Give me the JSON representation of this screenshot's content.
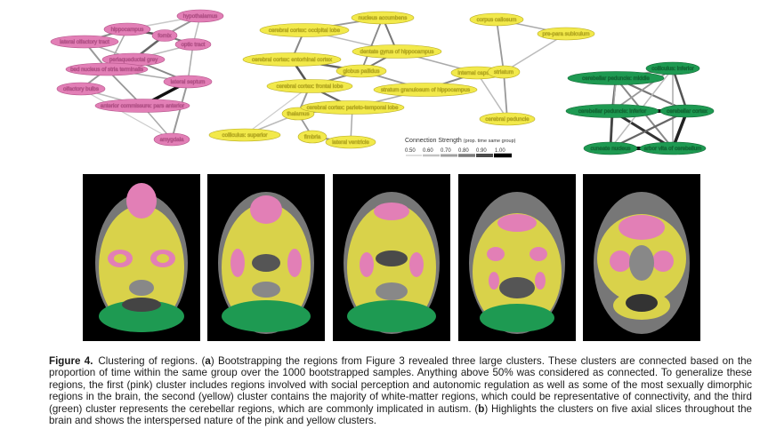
{
  "colors": {
    "pink": "#e27fb6",
    "yellow": "#f2e94b",
    "green": "#1e9a52",
    "edge_min": "#dddddd",
    "edge_max": "#000000"
  },
  "legend": {
    "title": "Connection Strength",
    "subtitle": "(prop. time same group)",
    "ticks": [
      "0.50",
      "0.60",
      "0.70",
      "0.80",
      "0.90",
      "1.00"
    ]
  },
  "pink_nodes": [
    {
      "id": "p1",
      "label": "hippocampus"
    },
    {
      "id": "p2",
      "label": "hypothalamus"
    },
    {
      "id": "p3",
      "label": "fornix"
    },
    {
      "id": "p4",
      "label": "lateral olfactory tract"
    },
    {
      "id": "p5",
      "label": "optic tract"
    },
    {
      "id": "p6",
      "label": "periaqueductal grey"
    },
    {
      "id": "p7",
      "label": "bed nucleus of stria terminalis"
    },
    {
      "id": "p8",
      "label": "olfactory bulbs"
    },
    {
      "id": "p9",
      "label": "lateral septum"
    },
    {
      "id": "p10",
      "label": "anterior commissure: pars anterior"
    },
    {
      "id": "p11",
      "label": "amygdala"
    }
  ],
  "yellow_nodes": [
    {
      "id": "y1",
      "label": "nucleus accumbens"
    },
    {
      "id": "y2",
      "label": "cerebral cortex: occipital lobe"
    },
    {
      "id": "y3",
      "label": "corpus callosum"
    },
    {
      "id": "y4",
      "label": "pre-para subiculum"
    },
    {
      "id": "y5",
      "label": "dentate gyrus of hippocampus"
    },
    {
      "id": "y6",
      "label": "cerebral cortex: entorhinal cortex"
    },
    {
      "id": "y7",
      "label": "globus pallidus"
    },
    {
      "id": "y8",
      "label": "internal capsule"
    },
    {
      "id": "y9",
      "label": "striatum"
    },
    {
      "id": "y10",
      "label": "cerebral cortex: frontal lobe"
    },
    {
      "id": "y11",
      "label": "stratum granulosum of hippocampus"
    },
    {
      "id": "y12",
      "label": "thalamus"
    },
    {
      "id": "y13",
      "label": "cerebral cortex: parieto-temporal lobe"
    },
    {
      "id": "y14",
      "label": "cerebral peduncle"
    },
    {
      "id": "y15",
      "label": "colliculus: superior"
    },
    {
      "id": "y16",
      "label": "fimbria"
    },
    {
      "id": "y17",
      "label": "lateral ventricle"
    }
  ],
  "green_nodes": [
    {
      "id": "g1",
      "label": "colliculus: inferior"
    },
    {
      "id": "g2",
      "label": "cerebellar peduncle: middle"
    },
    {
      "id": "g3",
      "label": "cerebellar peduncle: inferior"
    },
    {
      "id": "g4",
      "label": "cerebellar cortex"
    },
    {
      "id": "g5",
      "label": "cuneate nucleus"
    },
    {
      "id": "g6",
      "label": "arbor vita of cerebellum"
    }
  ],
  "panels": [
    {
      "label": ""
    },
    {
      "label": ""
    },
    {
      "label": ""
    },
    {
      "label": ""
    },
    {
      "label": ""
    }
  ],
  "caption": {
    "figure_label": "Figure 4.",
    "text_1": "Clustering of regions. (",
    "bold_a": "a",
    "text_2": ") Bootstrapping the regions from Figure 3 revealed three large clusters. These clusters are connected based on the proportion of time within the same group over the 1000 bootstrapped samples. Anything above 50% was considered as connected. To generalize these regions, the first (pink) cluster includes regions involved with social perception and autonomic regulation as well as some of the most sexually dimorphic regions in the brain, the second (yellow) cluster contains the majority of white-matter regions, which could be representative of connectivity, and the third (green) cluster represents the cerebellar regions, which are commonly implicated in autism. (",
    "bold_b": "b",
    "text_3": ") Highlights the clusters on five axial slices throughout the brain and shows the interspersed nature of the pink and yellow clusters."
  }
}
